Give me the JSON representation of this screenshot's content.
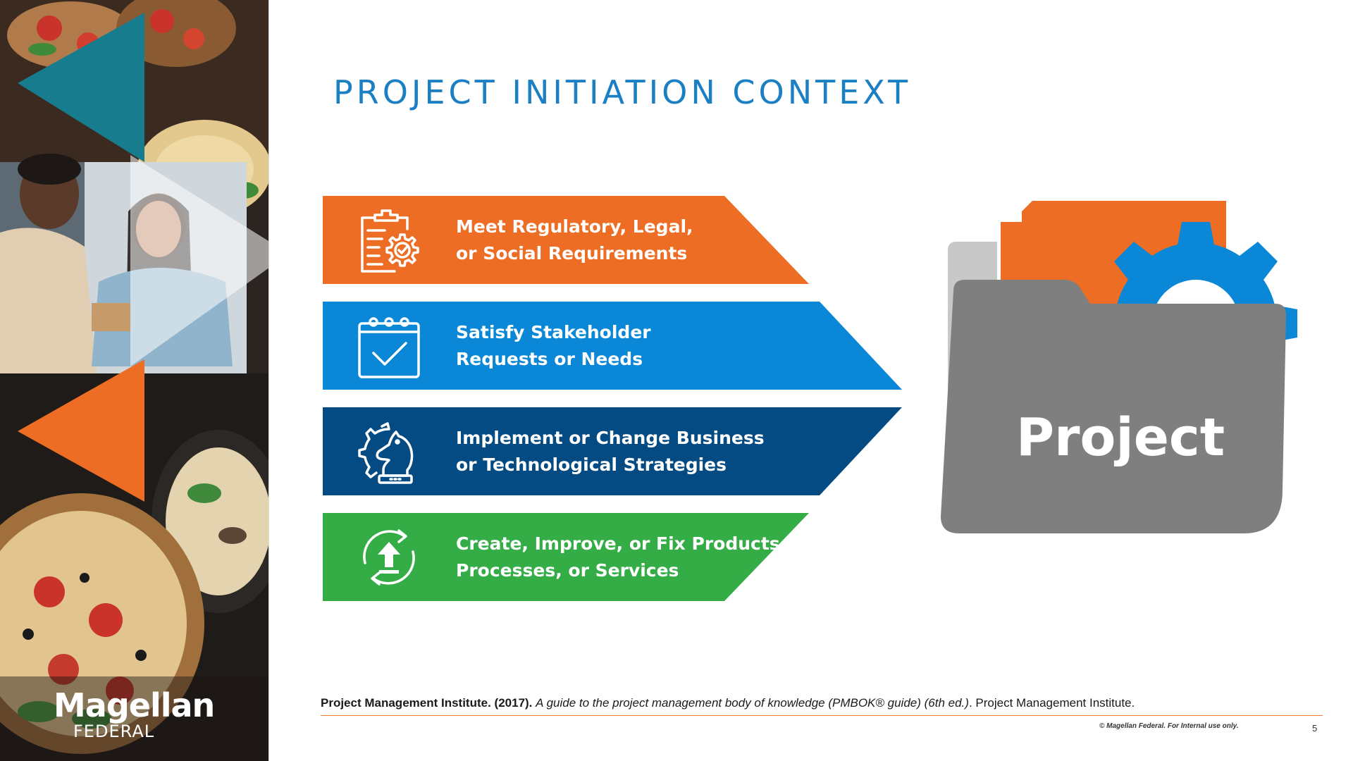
{
  "colors": {
    "title_blue": "#1b7fc4",
    "orange": "#ec6d23",
    "blue": "#0a87d6",
    "navy": "#044b83",
    "green": "#35ad47",
    "folder_gray": "#7f7f7f",
    "teal": "#167c8e",
    "footer_rule": "#ed7d31"
  },
  "title": "PROJECT INITIATION CONTEXT",
  "bands": [
    {
      "icon": "clipboard-gear-icon",
      "line1": "Meet Regulatory, Legal,",
      "line2": "or Social Requirements"
    },
    {
      "icon": "calendar-check-icon",
      "line1": "Satisfy Stakeholder",
      "line2": "Requests or Needs"
    },
    {
      "icon": "chess-knight-gear-icon",
      "line1": "Implement or Change Business",
      "line2": "or Technological Strategies"
    },
    {
      "icon": "circular-arrows-upload-icon",
      "line1": "Create, Improve, or Fix Products,",
      "line2": "Processes, or Services"
    }
  ],
  "project_graphic": {
    "label": "Project",
    "icon": "folder-gear-document-icon"
  },
  "brand": {
    "main": "Magellan",
    "sub": "FEDERAL"
  },
  "citation": {
    "author": "Project Management Institute. (2017).",
    "title": "A guide to the project management body of knowledge (PMBOK® guide) (6th ed.)",
    "publisher": ". Project Management Institute."
  },
  "copyright": "© Magellan Federal. For Internal use only.",
  "page_number": "5"
}
